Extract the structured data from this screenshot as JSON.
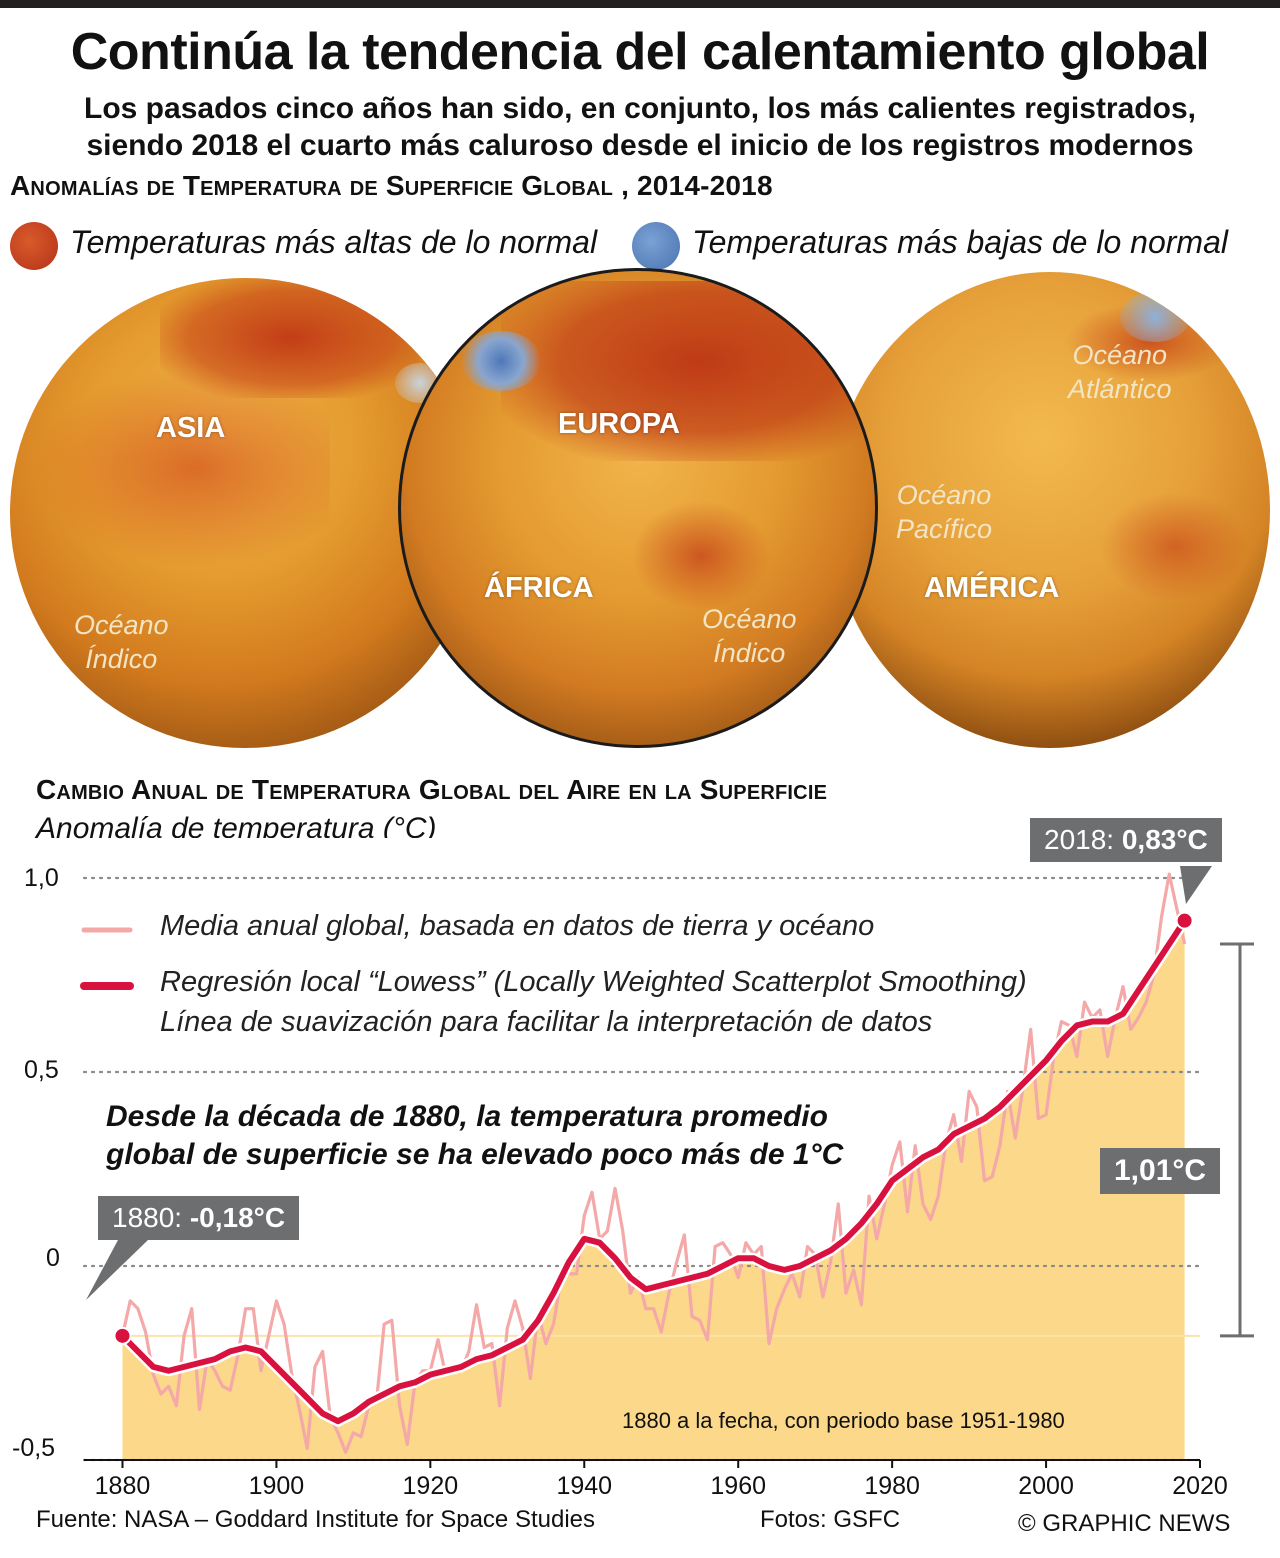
{
  "header": {
    "title": "Continúa la tendencia del calentamiento global",
    "subtitle_line1": "Los pasados cinco años han sido, en conjunto, los más calientes registrados,",
    "subtitle_line2": "siendo 2018 el cuarto más caluroso desde el inicio de los registros modernos"
  },
  "maps": {
    "heading": "Anomalías de Temperatura de Superficie Global , 2014-2018",
    "legend_warm": "Temperaturas más altas de lo normal",
    "legend_cool": "Temperaturas más bajas de lo normal",
    "warm_color": "#c1411d",
    "cool_color": "#5a86c2",
    "globe_left": {
      "region": "ASIA",
      "ocean_l1": "Océano",
      "ocean_l2": "Índico"
    },
    "globe_center": {
      "region": "EUROPA",
      "region2": "ÁFRICA",
      "ocean_l1": "Océano",
      "ocean_l2": "Índico"
    },
    "globe_right": {
      "region": "AMÉRICA",
      "ocean_a_l1": "Océano",
      "ocean_a_l2": "Atlántico",
      "ocean_p_l1": "Océano",
      "ocean_p_l2": "Pacífico"
    }
  },
  "chart_heading": "Cambio Anual de Temperatura Global del Aire en la Superficie",
  "chart_sub": "Anomalía de temperatura  (°C)",
  "legend": {
    "annual": "Media anual global, basada en datos de tierra y océano",
    "lowess_l1": "Regresión local “Lowess” (Locally Weighted Scatterplot Smoothing)",
    "lowess_l2": "Línea de suavización para facilitar la interpretación de datos"
  },
  "annotation": {
    "line1": "Desde la década de 1880, la temperatura promedio",
    "line2": "global de superficie se ha elevado poco más de 1°C"
  },
  "callouts": {
    "start_label": "1880: ",
    "start_value": "-0,18°C",
    "end_label": "2018: ",
    "end_value": "0,83°C",
    "rise": "1,01°C"
  },
  "base_note": "1880 a la fecha, con periodo base 1951-1980",
  "footer": {
    "source": "Fuente: NASA – Goddard Institute for Space Studies",
    "photos": "Fotos: GSFC",
    "copyright": "© GRAPHIC NEWS"
  },
  "chart_data": {
    "type": "line",
    "ylabel": "Anomalía de temperatura  (°C)",
    "ylim": [
      -0.5,
      1.0
    ],
    "xlim": [
      1875,
      2020
    ],
    "y_ticks": [
      1.0,
      0.5,
      0,
      -0.5
    ],
    "y_tick_labels": [
      "1,0",
      "0,5",
      "0",
      "-0,5"
    ],
    "x_ticks": [
      1880,
      1900,
      1920,
      1940,
      1960,
      1980,
      2000,
      2020
    ],
    "x_tick_labels": [
      "1880",
      "1900",
      "1920",
      "1940",
      "1960",
      "1980",
      "2000",
      "2020"
    ],
    "grid": "dotted horizontal",
    "series": [
      {
        "name": "Media anual global, basada en datos de tierra y océano",
        "color": "#f4a8a8",
        "x": [
          1880,
          1881,
          1882,
          1883,
          1884,
          1885,
          1886,
          1887,
          1888,
          1889,
          1890,
          1891,
          1892,
          1893,
          1894,
          1895,
          1896,
          1897,
          1898,
          1899,
          1900,
          1901,
          1902,
          1903,
          1904,
          1905,
          1906,
          1907,
          1908,
          1909,
          1910,
          1911,
          1912,
          1913,
          1914,
          1915,
          1916,
          1917,
          1918,
          1919,
          1920,
          1921,
          1922,
          1923,
          1924,
          1925,
          1926,
          1927,
          1928,
          1929,
          1930,
          1931,
          1932,
          1933,
          1934,
          1935,
          1936,
          1937,
          1938,
          1939,
          1940,
          1941,
          1942,
          1943,
          1944,
          1945,
          1946,
          1947,
          1948,
          1949,
          1950,
          1951,
          1952,
          1953,
          1954,
          1955,
          1956,
          1957,
          1958,
          1959,
          1960,
          1961,
          1962,
          1963,
          1964,
          1965,
          1966,
          1967,
          1968,
          1969,
          1970,
          1971,
          1972,
          1973,
          1974,
          1975,
          1976,
          1977,
          1978,
          1979,
          1980,
          1981,
          1982,
          1983,
          1984,
          1985,
          1986,
          1987,
          1988,
          1989,
          1990,
          1991,
          1992,
          1993,
          1994,
          1995,
          1996,
          1997,
          1998,
          1999,
          2000,
          2001,
          2002,
          2003,
          2004,
          2005,
          2006,
          2007,
          2008,
          2009,
          2010,
          2011,
          2012,
          2013,
          2014,
          2015,
          2016,
          2017,
          2018
        ],
        "y": [
          -0.18,
          -0.09,
          -0.11,
          -0.17,
          -0.28,
          -0.33,
          -0.31,
          -0.36,
          -0.18,
          -0.11,
          -0.37,
          -0.24,
          -0.27,
          -0.31,
          -0.32,
          -0.23,
          -0.11,
          -0.11,
          -0.27,
          -0.18,
          -0.09,
          -0.15,
          -0.28,
          -0.37,
          -0.47,
          -0.26,
          -0.22,
          -0.39,
          -0.43,
          -0.48,
          -0.43,
          -0.44,
          -0.36,
          -0.35,
          -0.15,
          -0.14,
          -0.36,
          -0.46,
          -0.3,
          -0.27,
          -0.27,
          -0.19,
          -0.28,
          -0.26,
          -0.27,
          -0.22,
          -0.1,
          -0.21,
          -0.2,
          -0.36,
          -0.16,
          -0.09,
          -0.16,
          -0.29,
          -0.12,
          -0.2,
          -0.15,
          -0.03,
          -0.02,
          -0.02,
          0.13,
          0.19,
          0.07,
          0.09,
          0.2,
          0.09,
          -0.07,
          -0.03,
          -0.11,
          -0.11,
          -0.17,
          -0.07,
          0.01,
          0.08,
          -0.13,
          -0.14,
          -0.19,
          0.05,
          0.06,
          0.03,
          -0.03,
          0.06,
          0.03,
          0.05,
          -0.2,
          -0.11,
          -0.06,
          -0.02,
          -0.08,
          0.05,
          0.03,
          -0.08,
          0.01,
          0.16,
          -0.07,
          -0.01,
          -0.1,
          0.18,
          0.07,
          0.16,
          0.26,
          0.32,
          0.14,
          0.31,
          0.16,
          0.12,
          0.18,
          0.32,
          0.39,
          0.27,
          0.45,
          0.41,
          0.22,
          0.23,
          0.31,
          0.45,
          0.33,
          0.46,
          0.61,
          0.38,
          0.39,
          0.54,
          0.63,
          0.62,
          0.54,
          0.68,
          0.64,
          0.66,
          0.54,
          0.64,
          0.72,
          0.61,
          0.64,
          0.68,
          0.75,
          0.9,
          1.01,
          0.92,
          0.83
        ]
      },
      {
        "name": "Regresión local “Lowess” (Locally Weighted Scatterplot Smoothing)",
        "color": "#d8113f",
        "x": [
          1880,
          1882,
          1884,
          1886,
          1888,
          1890,
          1892,
          1894,
          1896,
          1898,
          1900,
          1902,
          1904,
          1906,
          1908,
          1910,
          1912,
          1914,
          1916,
          1918,
          1920,
          1922,
          1924,
          1926,
          1928,
          1930,
          1932,
          1934,
          1936,
          1938,
          1940,
          1942,
          1944,
          1946,
          1948,
          1950,
          1952,
          1954,
          1956,
          1958,
          1960,
          1962,
          1964,
          1966,
          1968,
          1970,
          1972,
          1974,
          1976,
          1978,
          1980,
          1982,
          1984,
          1986,
          1988,
          1990,
          1992,
          1994,
          1996,
          1998,
          2000,
          2002,
          2004,
          2006,
          2008,
          2010,
          2012,
          2014,
          2016,
          2018
        ],
        "y": [
          -0.18,
          -0.22,
          -0.26,
          -0.27,
          -0.26,
          -0.25,
          -0.24,
          -0.22,
          -0.21,
          -0.22,
          -0.26,
          -0.3,
          -0.34,
          -0.38,
          -0.4,
          -0.38,
          -0.35,
          -0.33,
          -0.31,
          -0.3,
          -0.28,
          -0.27,
          -0.26,
          -0.24,
          -0.23,
          -0.21,
          -0.19,
          -0.14,
          -0.07,
          0.01,
          0.07,
          0.06,
          0.02,
          -0.03,
          -0.06,
          -0.05,
          -0.04,
          -0.03,
          -0.02,
          0.0,
          0.02,
          0.02,
          0.0,
          -0.01,
          0.0,
          0.02,
          0.04,
          0.07,
          0.11,
          0.16,
          0.22,
          0.25,
          0.28,
          0.3,
          0.34,
          0.36,
          0.38,
          0.41,
          0.45,
          0.49,
          0.53,
          0.58,
          0.62,
          0.63,
          0.63,
          0.65,
          0.71,
          0.77,
          0.83,
          0.89
        ]
      }
    ]
  }
}
